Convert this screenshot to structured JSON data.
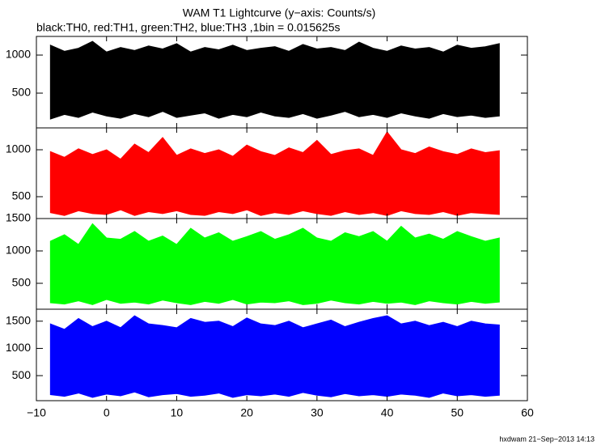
{
  "title": "WAM T1 Lightcurve (y−axis: Counts/s)",
  "subtitle": "black:TH0, red:TH1, green:TH2, blue:TH3 ,1bin = 0.015625s",
  "footer": "hxdwam 21−Sep−2013 14:13",
  "chart_data": [
    {
      "type": "band",
      "ylim": [
        43,
        1245
      ],
      "yticks": [
        500,
        1000
      ],
      "x": [
        -8,
        -6,
        -4,
        -2,
        0,
        2,
        4,
        6,
        8,
        10,
        12,
        14,
        16,
        18,
        20,
        22,
        24,
        26,
        28,
        30,
        32,
        34,
        36,
        38,
        40,
        42,
        44,
        46,
        48,
        50,
        52,
        54,
        56
      ],
      "series": [
        {
          "color": "#000000",
          "high": [
            1130,
            1050,
            1090,
            1180,
            1040,
            1100,
            1060,
            1120,
            1080,
            1150,
            1040,
            1100,
            1070,
            1130,
            1060,
            1090,
            1110,
            1050,
            1140,
            1080,
            1100,
            1060,
            1170,
            1090,
            1050,
            1120,
            1080,
            1100,
            1040,
            1130,
            1090,
            1110,
            1150
          ],
          "low": [
            160,
            220,
            180,
            250,
            200,
            170,
            230,
            190,
            260,
            180,
            210,
            240,
            170,
            220,
            190,
            250,
            200,
            180,
            230,
            170,
            210,
            260,
            190,
            220,
            180,
            240,
            200,
            170,
            230,
            190,
            210,
            180,
            200
          ]
        }
      ]
    },
    {
      "type": "band",
      "ylim": [
        267,
        1233
      ],
      "yticks": [
        500,
        1000
      ],
      "x": [
        -8,
        -6,
        -4,
        -2,
        0,
        2,
        4,
        6,
        8,
        10,
        12,
        14,
        16,
        18,
        20,
        22,
        24,
        26,
        28,
        30,
        32,
        34,
        36,
        38,
        40,
        42,
        44,
        46,
        48,
        50,
        52,
        54,
        56
      ],
      "series": [
        {
          "color": "#ff0000",
          "high": [
            980,
            920,
            1010,
            950,
            1000,
            900,
            1060,
            970,
            1130,
            940,
            1010,
            960,
            1000,
            930,
            1050,
            980,
            940,
            1020,
            970,
            1100,
            950,
            990,
            1010,
            940,
            1190,
            1000,
            960,
            1030,
            980,
            950,
            1010,
            970,
            990
          ],
          "low": [
            330,
            300,
            350,
            320,
            310,
            360,
            300,
            340,
            320,
            350,
            310,
            300,
            340,
            320,
            360,
            300,
            330,
            310,
            350,
            320,
            300,
            340,
            310,
            330,
            300,
            350,
            320,
            310,
            340,
            300,
            330,
            320,
            310
          ]
        }
      ]
    },
    {
      "type": "band",
      "ylim": [
        100,
        1500
      ],
      "yticks": [
        500,
        1000,
        1500
      ],
      "x": [
        -8,
        -6,
        -4,
        -2,
        0,
        2,
        4,
        6,
        8,
        10,
        12,
        14,
        16,
        18,
        20,
        22,
        24,
        26,
        28,
        30,
        32,
        34,
        36,
        38,
        40,
        42,
        44,
        46,
        48,
        50,
        52,
        54,
        56
      ],
      "series": [
        {
          "color": "#00ff00",
          "high": [
            1150,
            1250,
            1100,
            1420,
            1200,
            1180,
            1300,
            1150,
            1230,
            1100,
            1350,
            1200,
            1280,
            1150,
            1220,
            1300,
            1180,
            1250,
            1350,
            1200,
            1150,
            1280,
            1220,
            1300,
            1150,
            1380,
            1200,
            1260,
            1180,
            1300,
            1220,
            1150,
            1200
          ],
          "low": [
            200,
            180,
            230,
            170,
            250,
            190,
            210,
            180,
            240,
            200,
            170,
            220,
            190,
            250,
            180,
            210,
            200,
            230,
            170,
            190,
            240,
            200,
            180,
            220,
            190,
            210,
            170,
            230,
            200,
            180,
            220,
            190,
            210
          ]
        }
      ]
    },
    {
      "type": "band",
      "ylim": [
        40,
        1720
      ],
      "yticks": [
        500,
        1000,
        1500
      ],
      "xlim": [
        -10,
        60
      ],
      "xticks": [
        {
          "value": -10,
          "label": "−10"
        },
        0,
        10,
        20,
        30,
        40,
        50,
        60
      ],
      "x": [
        -8,
        -6,
        -4,
        -2,
        0,
        2,
        4,
        6,
        8,
        10,
        12,
        14,
        16,
        18,
        20,
        22,
        24,
        26,
        28,
        30,
        32,
        34,
        36,
        38,
        40,
        42,
        44,
        46,
        48,
        50,
        52,
        54,
        56
      ],
      "series": [
        {
          "color": "#0000ff",
          "high": [
            1450,
            1350,
            1550,
            1400,
            1500,
            1380,
            1600,
            1450,
            1420,
            1380,
            1550,
            1480,
            1500,
            1400,
            1560,
            1450,
            1420,
            1500,
            1380,
            1450,
            1520,
            1400,
            1480,
            1550,
            1600,
            1450,
            1500,
            1420,
            1480,
            1400,
            1500,
            1450,
            1430
          ],
          "low": [
            150,
            120,
            180,
            100,
            160,
            130,
            200,
            110,
            150,
            170,
            120,
            140,
            180,
            100,
            150,
            130,
            160,
            120,
            190,
            140,
            110,
            170,
            130,
            150,
            120,
            160,
            140,
            100,
            180,
            130,
            150,
            120,
            140
          ]
        }
      ]
    }
  ]
}
